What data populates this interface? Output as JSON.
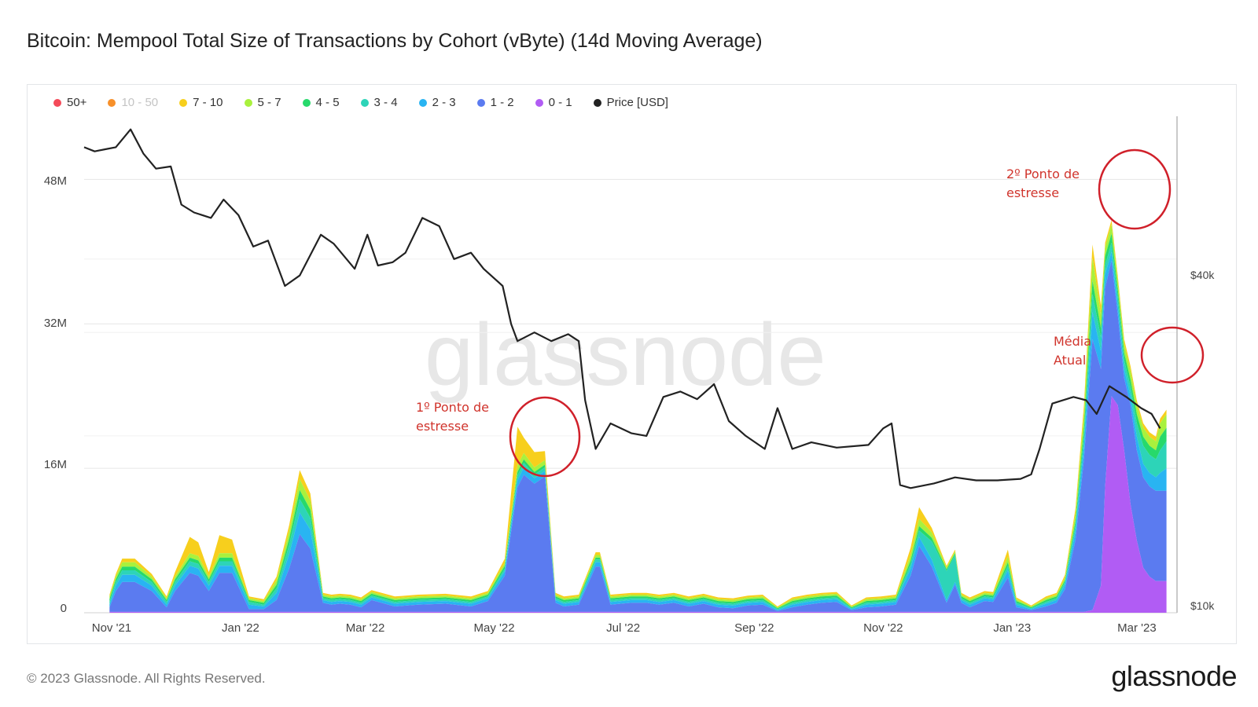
{
  "title": "Bitcoin: Mempool Total Size of Transactions by Cohort (vByte) (14d Moving Average)",
  "footer": {
    "copyright": "© 2023 Glassnode. All Rights Reserved.",
    "logo": "glassnode"
  },
  "watermark": "glassnode",
  "legend": [
    {
      "label": "50+",
      "color": "#f44a59",
      "muted": false
    },
    {
      "label": "10 - 50",
      "color": "#f7902a",
      "muted": true
    },
    {
      "label": "7 - 10",
      "color": "#f7cf1d",
      "muted": false
    },
    {
      "label": "5 - 7",
      "color": "#a9f13d",
      "muted": false
    },
    {
      "label": "4 - 5",
      "color": "#27d96b",
      "muted": false
    },
    {
      "label": "3 - 4",
      "color": "#2dd4b8",
      "muted": false
    },
    {
      "label": "2 - 3",
      "color": "#29b4f2",
      "muted": false
    },
    {
      "label": "1 - 2",
      "color": "#5b7bf0",
      "muted": false
    },
    {
      "label": "0 - 1",
      "color": "#b15cf4",
      "muted": false
    },
    {
      "label": "Price [USD]",
      "color": "#222222",
      "muted": false
    }
  ],
  "annotations": [
    {
      "lines": [
        "1º Ponto de",
        "estresse"
      ]
    },
    {
      "lines": [
        "2º Ponto de",
        "estresse"
      ]
    },
    {
      "lines": [
        "Média",
        "Atual"
      ]
    }
  ],
  "chart_data": {
    "type": "area",
    "stacked": true,
    "y_left_label": "",
    "y_left_ticks": [
      "0",
      "16M",
      "32M",
      "48M"
    ],
    "y_left_range": [
      0,
      55000000
    ],
    "y_right_ticks": [
      "$10k",
      "$40k"
    ],
    "y_right_range": [
      10000,
      70000
    ],
    "y_right_scale": "log",
    "x_range": [
      "2021-10-19",
      "2023-03-20"
    ],
    "x_ticks": [
      "Nov '21",
      "Jan '22",
      "Mar '22",
      "May '22",
      "Jul '22",
      "Sep '22",
      "Nov '22",
      "Jan '23",
      "Mar '23"
    ],
    "x_tick_dates": [
      "2021-11-01",
      "2022-01-01",
      "2022-03-01",
      "2022-05-01",
      "2022-07-01",
      "2022-09-01",
      "2022-11-01",
      "2023-01-01",
      "2023-03-01"
    ],
    "grid": true,
    "legend_position": "top-left",
    "series_order": [
      "0 - 1",
      "1 - 2",
      "2 - 3",
      "3 - 4",
      "4 - 5",
      "5 - 7",
      "7 - 10",
      "10 - 50",
      "50+"
    ],
    "dates": [
      "2021-10-31",
      "2021-11-03",
      "2021-11-06",
      "2021-11-12",
      "2021-11-20",
      "2021-11-27",
      "2021-12-01",
      "2021-12-08",
      "2021-12-12",
      "2021-12-17",
      "2021-12-22",
      "2021-12-28",
      "2022-01-05",
      "2022-01-12",
      "2022-01-18",
      "2022-01-24",
      "2022-01-29",
      "2022-02-03",
      "2022-02-09",
      "2022-02-13",
      "2022-02-17",
      "2022-02-22",
      "2022-02-27",
      "2022-03-04",
      "2022-03-15",
      "2022-03-26",
      "2022-04-08",
      "2022-04-20",
      "2022-04-28",
      "2022-05-06",
      "2022-05-12",
      "2022-05-15",
      "2022-05-20",
      "2022-05-25",
      "2022-05-30",
      "2022-06-03",
      "2022-06-10",
      "2022-06-18",
      "2022-06-20",
      "2022-06-25",
      "2022-06-30",
      "2022-07-05",
      "2022-07-12",
      "2022-07-18",
      "2022-07-25",
      "2022-08-01",
      "2022-08-08",
      "2022-08-15",
      "2022-08-22",
      "2022-08-29",
      "2022-09-05",
      "2022-09-12",
      "2022-09-19",
      "2022-09-26",
      "2022-10-03",
      "2022-10-10",
      "2022-10-17",
      "2022-10-24",
      "2022-10-31",
      "2022-11-07",
      "2022-11-14",
      "2022-11-18",
      "2022-11-24",
      "2022-12-01",
      "2022-12-05",
      "2022-12-08",
      "2022-12-12",
      "2022-12-19",
      "2022-12-23",
      "2022-12-30",
      "2023-01-03",
      "2023-01-10",
      "2023-01-17",
      "2023-01-22",
      "2023-01-26",
      "2023-01-31",
      "2023-02-04",
      "2023-02-08",
      "2023-02-12",
      "2023-02-14",
      "2023-02-17",
      "2023-02-20",
      "2023-02-23",
      "2023-02-26",
      "2023-03-01",
      "2023-03-04",
      "2023-03-07",
      "2023-03-10",
      "2023-03-12",
      "2023-03-15"
    ],
    "series": [
      {
        "name": "0 - 1",
        "values": [
          0.1,
          0.1,
          0.1,
          0.1,
          0.1,
          0.1,
          0.1,
          0.1,
          0.1,
          0.1,
          0.1,
          0.1,
          0.1,
          0.1,
          0.1,
          0.1,
          0.1,
          0.1,
          0.1,
          0.1,
          0.1,
          0.1,
          0.1,
          0.1,
          0.1,
          0.1,
          0.1,
          0.1,
          0.1,
          0.1,
          0.1,
          0.1,
          0.1,
          0.1,
          0.1,
          0.1,
          0.1,
          0.1,
          0.1,
          0.1,
          0.1,
          0.1,
          0.1,
          0.1,
          0.1,
          0.1,
          0.1,
          0.1,
          0.1,
          0.1,
          0.1,
          0.1,
          0.1,
          0.1,
          0.1,
          0.1,
          0.1,
          0.1,
          0.1,
          0.1,
          0.1,
          0.1,
          0.1,
          0.1,
          0.1,
          0.1,
          0.1,
          0.1,
          0.1,
          0.1,
          0.1,
          0.1,
          0.1,
          0.1,
          0.1,
          0.1,
          0.1,
          0.3,
          3,
          14,
          24,
          23,
          18,
          12,
          8,
          5,
          4,
          3.5,
          3.5,
          3.5
        ]
      },
      {
        "name": "1 - 2",
        "values": [
          0.5,
          2.3,
          3.3,
          3.3,
          2.3,
          0.5,
          2.3,
          4.3,
          4.0,
          2.3,
          4.3,
          4.3,
          0.3,
          0.3,
          1.3,
          4.8,
          8.6,
          7.0,
          1.0,
          0.8,
          0.9,
          0.8,
          0.5,
          1.3,
          0.6,
          0.8,
          0.9,
          0.6,
          1.2,
          4.0,
          13.8,
          15.2,
          14.2,
          15.0,
          1.0,
          0.6,
          0.8,
          5.0,
          5.0,
          0.8,
          0.9,
          1.0,
          1.0,
          0.8,
          1.0,
          0.6,
          0.9,
          0.5,
          0.4,
          0.7,
          0.8,
          0.1,
          0.5,
          0.8,
          1.0,
          1.1,
          0.2,
          0.5,
          0.6,
          0.8,
          4.0,
          7.3,
          5.0,
          1.0,
          3.0,
          1.0,
          0.5,
          1.2,
          1.1,
          3.8,
          0.5,
          0.2,
          0.6,
          1.0,
          2.5,
          8,
          17,
          30,
          24,
          22,
          15,
          10,
          8,
          11,
          10,
          10,
          10,
          10,
          10,
          10
        ]
      },
      {
        "name": "2 - 3",
        "values": [
          0.3,
          0.6,
          0.8,
          0.8,
          0.6,
          0.3,
          0.6,
          0.8,
          0.8,
          0.6,
          0.8,
          0.8,
          0.5,
          0.3,
          0.8,
          1.6,
          2.4,
          2.1,
          0.3,
          0.3,
          0.3,
          0.3,
          0.3,
          0.3,
          0.3,
          0.3,
          0.3,
          0.3,
          0.3,
          0.5,
          0.8,
          0.8,
          0.6,
          0.6,
          0.3,
          0.3,
          0.3,
          0.5,
          0.5,
          0.3,
          0.3,
          0.3,
          0.3,
          0.3,
          0.3,
          0.3,
          0.3,
          0.3,
          0.3,
          0.3,
          0.3,
          0.1,
          0.3,
          0.3,
          0.3,
          0.3,
          0.1,
          0.3,
          0.3,
          0.3,
          0.8,
          1.0,
          0.8,
          0.3,
          0.3,
          0.3,
          0.3,
          0.3,
          0.3,
          0.8,
          0.3,
          0.1,
          0.3,
          0.3,
          0.5,
          1,
          1.5,
          3,
          2,
          1.5,
          1,
          1,
          1,
          1,
          1.5,
          1.5,
          1.5,
          1.5,
          2,
          2.5
        ]
      },
      {
        "name": "3 - 4",
        "values": [
          0.3,
          0.4,
          0.5,
          0.5,
          0.4,
          0.3,
          0.4,
          0.5,
          0.5,
          0.4,
          0.5,
          0.5,
          0.3,
          0.2,
          0.5,
          1.0,
          1.5,
          1.3,
          0.2,
          0.2,
          0.2,
          0.2,
          0.2,
          0.2,
          0.2,
          0.2,
          0.2,
          0.2,
          0.2,
          0.3,
          0.5,
          0.5,
          0.4,
          0.4,
          0.2,
          0.2,
          0.2,
          0.3,
          0.3,
          0.2,
          0.2,
          0.2,
          0.2,
          0.2,
          0.2,
          0.2,
          0.2,
          0.2,
          0.2,
          0.2,
          0.2,
          0.1,
          0.2,
          0.2,
          0.2,
          0.2,
          0.1,
          0.2,
          0.2,
          0.2,
          0.5,
          0.7,
          2.0,
          3.2,
          3.0,
          0.2,
          0.2,
          0.2,
          0.2,
          0.5,
          0.2,
          0.1,
          0.2,
          0.2,
          0.3,
          0.6,
          1,
          2,
          1.5,
          1,
          1,
          1,
          1,
          1,
          1.5,
          2,
          2,
          2,
          2.5,
          3
        ]
      },
      {
        "name": "4 - 5",
        "values": [
          0.3,
          0.3,
          0.4,
          0.4,
          0.3,
          0.2,
          0.3,
          0.4,
          0.4,
          0.3,
          0.4,
          0.4,
          0.2,
          0.2,
          0.4,
          0.7,
          1.0,
          0.9,
          0.2,
          0.2,
          0.2,
          0.2,
          0.2,
          0.2,
          0.2,
          0.2,
          0.2,
          0.2,
          0.2,
          0.3,
          0.4,
          0.4,
          0.3,
          0.3,
          0.2,
          0.2,
          0.2,
          0.2,
          0.2,
          0.2,
          0.2,
          0.2,
          0.2,
          0.2,
          0.2,
          0.2,
          0.2,
          0.2,
          0.2,
          0.2,
          0.2,
          0.1,
          0.2,
          0.2,
          0.2,
          0.2,
          0.1,
          0.2,
          0.2,
          0.2,
          0.4,
          0.5,
          0.4,
          0.2,
          0.2,
          0.2,
          0.2,
          0.2,
          0.2,
          0.4,
          0.2,
          0.1,
          0.2,
          0.2,
          0.2,
          0.5,
          1,
          1.5,
          1,
          1,
          1,
          0.8,
          0.8,
          0.8,
          1,
          1,
          1,
          1,
          1.5,
          1.5
        ]
      },
      {
        "name": "5 - 7",
        "values": [
          0.3,
          0.3,
          0.5,
          0.5,
          0.3,
          0.2,
          0.3,
          0.5,
          0.5,
          0.3,
          0.5,
          0.5,
          0.2,
          0.2,
          0.5,
          0.8,
          1.2,
          1.0,
          0.2,
          0.2,
          0.2,
          0.2,
          0.2,
          0.2,
          0.2,
          0.2,
          0.2,
          0.2,
          0.2,
          0.3,
          0.7,
          0.7,
          0.5,
          0.5,
          0.2,
          0.2,
          0.2,
          0.3,
          0.3,
          0.2,
          0.2,
          0.2,
          0.2,
          0.2,
          0.2,
          0.2,
          0.2,
          0.2,
          0.2,
          0.2,
          0.2,
          0.1,
          0.2,
          0.2,
          0.2,
          0.2,
          0.1,
          0.2,
          0.2,
          0.2,
          0.6,
          0.8,
          0.6,
          0.2,
          0.2,
          0.2,
          0.2,
          0.2,
          0.2,
          0.6,
          0.2,
          0.1,
          0.2,
          0.2,
          0.3,
          0.8,
          1.5,
          2.5,
          1.5,
          1,
          1,
          1,
          1,
          1,
          1,
          1,
          1,
          1,
          1.5,
          1.5
        ]
      },
      {
        "name": "7 - 10",
        "values": [
          0.2,
          0.3,
          0.4,
          0.4,
          0.3,
          0.2,
          0.5,
          1.8,
          1.5,
          0.5,
          2.0,
          1.5,
          0.2,
          0.2,
          0.4,
          0.7,
          1.0,
          0.8,
          0.2,
          0.2,
          0.2,
          0.2,
          0.2,
          0.2,
          0.2,
          0.2,
          0.2,
          0.2,
          0.2,
          0.5,
          4.3,
          1.7,
          1.7,
          1.0,
          0.2,
          0.2,
          0.2,
          0.3,
          0.3,
          0.2,
          0.2,
          0.2,
          0.2,
          0.2,
          0.2,
          0.2,
          0.2,
          0.2,
          0.2,
          0.2,
          0.2,
          0.1,
          0.2,
          0.2,
          0.2,
          0.2,
          0.1,
          0.2,
          0.2,
          0.2,
          0.8,
          1.3,
          0.5,
          0.2,
          0.2,
          0.2,
          0.2,
          0.2,
          0.2,
          0.8,
          0.2,
          0.1,
          0.2,
          0.2,
          0.3,
          0.6,
          1,
          1.5,
          1,
          0.5,
          0.5,
          0.5,
          0.5,
          0.5,
          0.5,
          0.5,
          0.5,
          0.5,
          0.5,
          0.5
        ]
      },
      {
        "name": "10 - 50",
        "values": [
          0,
          0,
          0,
          0,
          0,
          0,
          0,
          0,
          0,
          0,
          0,
          0,
          0,
          0,
          0,
          0,
          0,
          0,
          0,
          0,
          0,
          0,
          0,
          0,
          0,
          0,
          0,
          0,
          0,
          0,
          0,
          0,
          0,
          0,
          0,
          0,
          0,
          0,
          0,
          0,
          0,
          0,
          0,
          0,
          0,
          0,
          0,
          0,
          0,
          0,
          0,
          0,
          0,
          0,
          0,
          0,
          0,
          0,
          0,
          0,
          0,
          0,
          0,
          0,
          0,
          0,
          0,
          0,
          0,
          0,
          0,
          0,
          0,
          0,
          0,
          0,
          0,
          0,
          0,
          0,
          0,
          0,
          0,
          0,
          0,
          0,
          0,
          0,
          0,
          0
        ]
      },
      {
        "name": "50+",
        "values": [
          0,
          0,
          0,
          0,
          0,
          0,
          0,
          0,
          0,
          0,
          0,
          0,
          0,
          0,
          0,
          0,
          0,
          0,
          0,
          0,
          0,
          0,
          0,
          0,
          0,
          0,
          0,
          0,
          0,
          0,
          0,
          0,
          0,
          0,
          0,
          0,
          0,
          0,
          0,
          0,
          0,
          0,
          0,
          0,
          0,
          0,
          0,
          0,
          0,
          0,
          0,
          0,
          0,
          0,
          0,
          0,
          0,
          0,
          0,
          0,
          0,
          0,
          0,
          0,
          0,
          0,
          0,
          0,
          0,
          0,
          0,
          0,
          0,
          0,
          0,
          0,
          0,
          0,
          0,
          0,
          0,
          0,
          0,
          0,
          0,
          0,
          0,
          0,
          0,
          0
        ]
      }
    ],
    "series_units": "million vBytes",
    "price": {
      "name": "Price [USD]",
      "dates": [
        "2021-10-19",
        "2021-10-24",
        "2021-10-29",
        "2021-11-03",
        "2021-11-10",
        "2021-11-16",
        "2021-11-22",
        "2021-11-29",
        "2021-12-04",
        "2021-12-10",
        "2021-12-18",
        "2021-12-24",
        "2021-12-31",
        "2022-01-07",
        "2022-01-14",
        "2022-01-22",
        "2022-01-29",
        "2022-02-08",
        "2022-02-14",
        "2022-02-24",
        "2022-03-02",
        "2022-03-07",
        "2022-03-14",
        "2022-03-20",
        "2022-03-28",
        "2022-04-05",
        "2022-04-12",
        "2022-04-20",
        "2022-04-26",
        "2022-05-05",
        "2022-05-09",
        "2022-05-12",
        "2022-05-20",
        "2022-05-28",
        "2022-06-05",
        "2022-06-10",
        "2022-06-13",
        "2022-06-18",
        "2022-06-25",
        "2022-07-05",
        "2022-07-12",
        "2022-07-20",
        "2022-07-28",
        "2022-08-05",
        "2022-08-13",
        "2022-08-20",
        "2022-08-28",
        "2022-09-06",
        "2022-09-12",
        "2022-09-19",
        "2022-09-28",
        "2022-10-10",
        "2022-10-25",
        "2022-11-01",
        "2022-11-05",
        "2022-11-09",
        "2022-11-14",
        "2022-11-25",
        "2022-12-05",
        "2022-12-15",
        "2022-12-25",
        "2023-01-05",
        "2023-01-10",
        "2023-01-14",
        "2023-01-20",
        "2023-01-30",
        "2023-02-05",
        "2023-02-10",
        "2023-02-16",
        "2023-02-24",
        "2023-03-03",
        "2023-03-08",
        "2023-03-12"
      ],
      "values": [
        62000,
        61000,
        61500,
        62000,
        66500,
        60500,
        57000,
        57500,
        49500,
        48000,
        47000,
        50500,
        47500,
        42000,
        43000,
        36000,
        37500,
        44000,
        42500,
        38500,
        44000,
        39000,
        39500,
        41000,
        47000,
        45500,
        40000,
        41000,
        38500,
        36000,
        31000,
        29000,
        30000,
        29000,
        29800,
        29000,
        23000,
        19000,
        21000,
        20200,
        20000,
        23300,
        23800,
        23100,
        24500,
        21200,
        20000,
        19000,
        22300,
        19000,
        19500,
        19100,
        19300,
        20600,
        21000,
        16500,
        16300,
        16600,
        17000,
        16800,
        16800,
        16900,
        17200,
        19000,
        22700,
        23300,
        23000,
        21800,
        24300,
        23300,
        22300,
        21800,
        20600
      ]
    }
  }
}
